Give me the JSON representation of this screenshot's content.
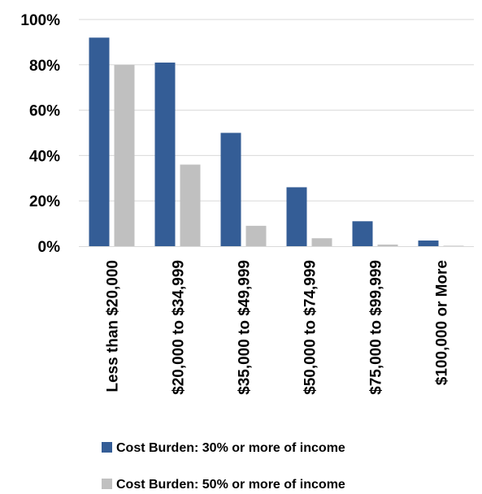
{
  "chart_data": {
    "type": "bar",
    "categories": [
      "Less than $20,000",
      "$20,000 to $34,999",
      "$35,000 to $49,999",
      "$50,000 to $74,999",
      "$75,000 to $99,999",
      "$100,000 or More"
    ],
    "series": [
      {
        "name": "Cost Burden: 30% or more of income",
        "color": "#345d96",
        "values": [
          92,
          81,
          50,
          26,
          11,
          2.5
        ]
      },
      {
        "name": "Cost Burden: 50% or more of income",
        "color": "#c0c0c0",
        "values": [
          80,
          36,
          9,
          3.5,
          0.7,
          0.2
        ]
      }
    ],
    "ylim": [
      0,
      100
    ],
    "yticks": [
      "0%",
      "20%",
      "40%",
      "60%",
      "80%",
      "100%"
    ],
    "ytick_values": [
      0,
      20,
      40,
      60,
      80,
      100
    ],
    "grid": true,
    "legend_position": "bottom",
    "title": "",
    "xlabel": "",
    "ylabel": ""
  },
  "colors": {
    "grid": "#d9d9d9",
    "axis": "#d9d9d9",
    "text": "#000000"
  }
}
